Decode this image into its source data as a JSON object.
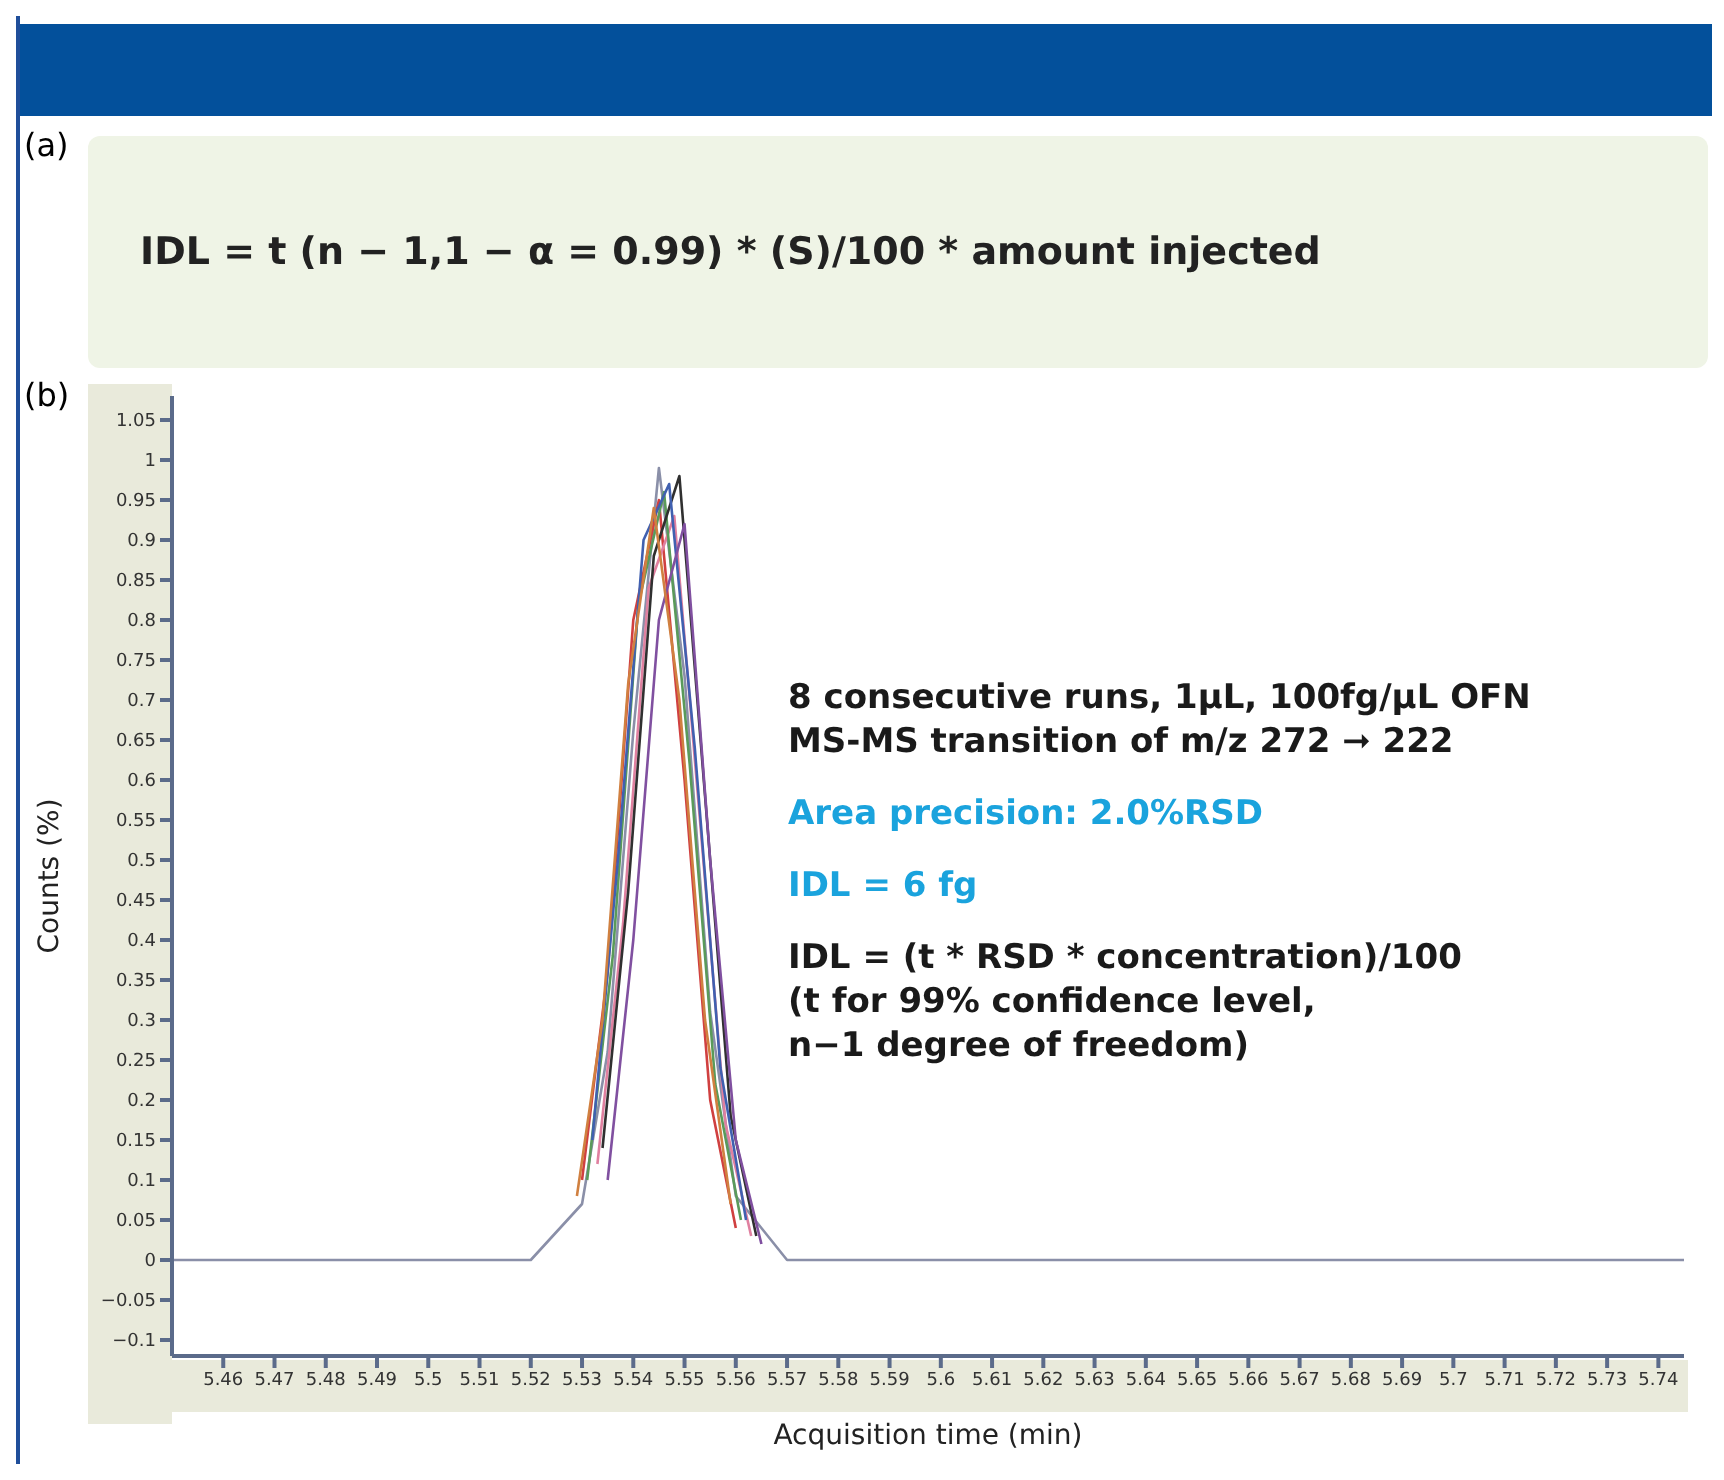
{
  "chart_data": {
    "type": "line",
    "xlabel": "Acquisition time (min)",
    "ylabel": "Counts (%)",
    "annotations": [
      "(a)",
      "IDL = t (n − 1,1 − α = 0.99) * (S)/100 * amount injected",
      "(b)",
      "8 consecutive runs, 1µL, 100fg/µL OFN",
      "MS-MS transition of m/z 272 ➞ 222",
      "Area precision: 2.0%RSD",
      "IDL = 6 fg",
      "IDL = (t * RSD * concentration)/100",
      "(t for 99% confidence level,",
      "n−1 degree of freedom)"
    ],
    "series": [
      {
        "color": "#8a8fa8",
        "x": [
          5.45,
          5.52,
          5.53,
          5.535,
          5.54,
          5.545,
          5.55,
          5.555,
          5.56,
          5.57,
          5.745
        ],
        "values": [
          0,
          0,
          0.07,
          0.26,
          0.66,
          0.99,
          0.73,
          0.31,
          0.08,
          0,
          0
        ]
      },
      {
        "color": "#d04040",
        "x": [
          5.53,
          5.535,
          5.54,
          5.545,
          5.55,
          5.555,
          5.56
        ],
        "values": [
          0.1,
          0.36,
          0.8,
          0.95,
          0.6,
          0.2,
          0.04
        ]
      },
      {
        "color": "#e080a0",
        "x": [
          5.533,
          5.538,
          5.543,
          5.548,
          5.553,
          5.558,
          5.563
        ],
        "values": [
          0.12,
          0.42,
          0.84,
          0.93,
          0.55,
          0.17,
          0.03
        ]
      },
      {
        "color": "#5a9a5a",
        "x": [
          5.531,
          5.536,
          5.541,
          5.546,
          5.551,
          5.556,
          5.561
        ],
        "values": [
          0.1,
          0.38,
          0.82,
          0.96,
          0.62,
          0.22,
          0.05
        ]
      },
      {
        "color": "#303030",
        "x": [
          5.534,
          5.539,
          5.544,
          5.549,
          5.554,
          5.559,
          5.564
        ],
        "values": [
          0.14,
          0.46,
          0.88,
          0.98,
          0.58,
          0.18,
          0.03
        ]
      },
      {
        "color": "#4060b0",
        "x": [
          5.532,
          5.537,
          5.542,
          5.547,
          5.552,
          5.557,
          5.562
        ],
        "values": [
          0.15,
          0.5,
          0.9,
          0.97,
          0.64,
          0.24,
          0.05
        ]
      },
      {
        "color": "#8050a0",
        "x": [
          5.535,
          5.54,
          5.545,
          5.55,
          5.555,
          5.56,
          5.565
        ],
        "values": [
          0.1,
          0.4,
          0.8,
          0.92,
          0.5,
          0.15,
          0.02
        ]
      },
      {
        "color": "#d08040",
        "x": [
          5.529,
          5.534,
          5.539,
          5.544,
          5.549,
          5.554,
          5.559
        ],
        "values": [
          0.08,
          0.3,
          0.72,
          0.94,
          0.7,
          0.3,
          0.07
        ]
      }
    ],
    "xlim": [
      5.45,
      5.745
    ],
    "xticks": [
      5.46,
      5.47,
      5.48,
      5.49,
      5.5,
      5.51,
      5.52,
      5.53,
      5.54,
      5.55,
      5.56,
      5.57,
      5.58,
      5.59,
      5.6,
      5.61,
      5.62,
      5.63,
      5.64,
      5.65,
      5.66,
      5.67,
      5.68,
      5.69,
      5.7,
      5.71,
      5.72,
      5.73,
      5.74
    ],
    "ylim": [
      -0.12,
      1.08
    ],
    "yticks": [
      {
        "value": -0.1,
        "label": "−0.1"
      },
      {
        "value": -0.05,
        "label": "−0.05"
      },
      0,
      0.05,
      0.1,
      0.15,
      0.2,
      0.25,
      0.3,
      0.35,
      0.4,
      0.45,
      0.5,
      0.55,
      0.6,
      0.65,
      0.7,
      0.75,
      0.8,
      0.85,
      0.9,
      0.95,
      1,
      1.05
    ],
    "grid": false,
    "legend": false,
    "marker": "none",
    "line_style": "solid"
  }
}
